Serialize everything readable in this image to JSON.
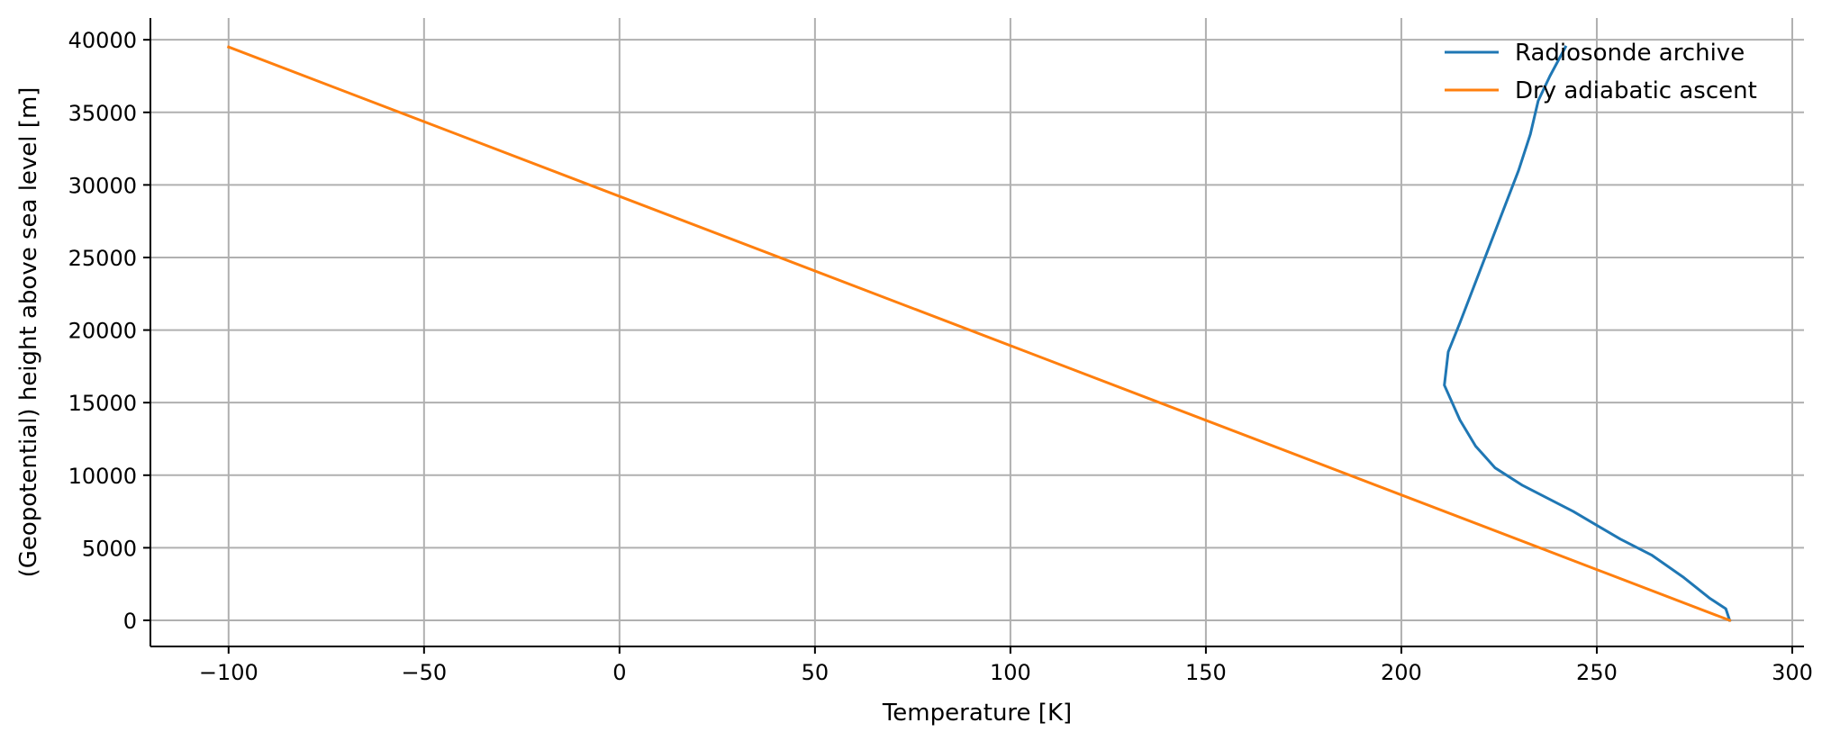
{
  "chart_data": {
    "type": "line",
    "title": "",
    "xlabel": "Temperature [K]",
    "ylabel": "(Geopotential) height above sea level [m]",
    "xlim": [
      -120,
      303
    ],
    "ylim": [
      -1800,
      41500
    ],
    "xticks": [
      -100,
      -50,
      0,
      50,
      100,
      150,
      200,
      250,
      300
    ],
    "xtick_labels": [
      "−100",
      "−50",
      "0",
      "50",
      "100",
      "150",
      "200",
      "250",
      "300"
    ],
    "yticks": [
      0,
      5000,
      10000,
      15000,
      20000,
      25000,
      30000,
      35000,
      40000
    ],
    "ytick_labels": [
      "0",
      "5000",
      "10000",
      "15000",
      "20000",
      "25000",
      "30000",
      "35000",
      "40000"
    ],
    "grid": true,
    "legend_position": "top-right",
    "series": [
      {
        "name": "Radiosonde archive",
        "color": "#1f77b4",
        "x": [
          284,
          283,
          279,
          272,
          264,
          256,
          244,
          231,
          224,
          219,
          215,
          211,
          212,
          215,
          220,
          225,
          230,
          233,
          235,
          238,
          242
        ],
        "y": [
          0,
          800,
          1500,
          3000,
          4500,
          5600,
          7500,
          9300,
          10500,
          12000,
          13800,
          16200,
          18500,
          20500,
          24000,
          27500,
          31000,
          33500,
          35800,
          37500,
          39500
        ]
      },
      {
        "name": "Dry adiabatic ascent",
        "color": "#ff7f0e",
        "x": [
          284,
          -100
        ],
        "y": [
          0,
          39500
        ]
      }
    ]
  }
}
